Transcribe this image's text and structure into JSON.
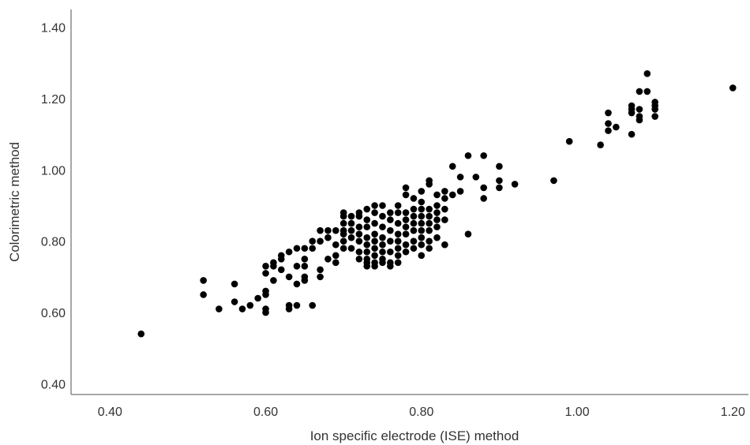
{
  "chart_data": {
    "type": "scatter",
    "title": "",
    "xlabel": "Ion specific electrode (ISE) method",
    "ylabel": "Colorimetric method",
    "xlim": [
      0.35,
      1.22
    ],
    "ylim": [
      0.37,
      1.45
    ],
    "x_ticks": [
      "0.40",
      "0.60",
      "0.80",
      "1.00",
      "1.20"
    ],
    "y_ticks": [
      "0.40",
      "0.60",
      "0.80",
      "1.00",
      "1.20",
      "1.40"
    ],
    "grid": false,
    "legend": "none",
    "point_color": "#000000",
    "points": [
      [
        0.44,
        0.54
      ],
      [
        0.52,
        0.69
      ],
      [
        0.52,
        0.65
      ],
      [
        0.54,
        0.61
      ],
      [
        0.56,
        0.68
      ],
      [
        0.56,
        0.63
      ],
      [
        0.57,
        0.61
      ],
      [
        0.58,
        0.62
      ],
      [
        0.59,
        0.64
      ],
      [
        0.6,
        0.66
      ],
      [
        0.6,
        0.65
      ],
      [
        0.6,
        0.61
      ],
      [
        0.6,
        0.6
      ],
      [
        0.6,
        0.71
      ],
      [
        0.6,
        0.73
      ],
      [
        0.61,
        0.74
      ],
      [
        0.61,
        0.73
      ],
      [
        0.61,
        0.69
      ],
      [
        0.62,
        0.76
      ],
      [
        0.62,
        0.75
      ],
      [
        0.62,
        0.72
      ],
      [
        0.63,
        0.77
      ],
      [
        0.63,
        0.7
      ],
      [
        0.63,
        0.62
      ],
      [
        0.63,
        0.61
      ],
      [
        0.64,
        0.78
      ],
      [
        0.64,
        0.73
      ],
      [
        0.64,
        0.68
      ],
      [
        0.64,
        0.62
      ],
      [
        0.65,
        0.78
      ],
      [
        0.65,
        0.75
      ],
      [
        0.65,
        0.73
      ],
      [
        0.65,
        0.7
      ],
      [
        0.65,
        0.69
      ],
      [
        0.66,
        0.8
      ],
      [
        0.66,
        0.78
      ],
      [
        0.66,
        0.62
      ],
      [
        0.67,
        0.83
      ],
      [
        0.67,
        0.8
      ],
      [
        0.67,
        0.72
      ],
      [
        0.67,
        0.7
      ],
      [
        0.68,
        0.83
      ],
      [
        0.68,
        0.81
      ],
      [
        0.68,
        0.75
      ],
      [
        0.69,
        0.83
      ],
      [
        0.69,
        0.79
      ],
      [
        0.69,
        0.76
      ],
      [
        0.69,
        0.74
      ],
      [
        0.7,
        0.88
      ],
      [
        0.7,
        0.87
      ],
      [
        0.7,
        0.85
      ],
      [
        0.7,
        0.83
      ],
      [
        0.7,
        0.82
      ],
      [
        0.7,
        0.8
      ],
      [
        0.7,
        0.78
      ],
      [
        0.71,
        0.87
      ],
      [
        0.71,
        0.85
      ],
      [
        0.71,
        0.83
      ],
      [
        0.71,
        0.81
      ],
      [
        0.71,
        0.78
      ],
      [
        0.72,
        0.88
      ],
      [
        0.72,
        0.87
      ],
      [
        0.72,
        0.84
      ],
      [
        0.72,
        0.82
      ],
      [
        0.72,
        0.8
      ],
      [
        0.72,
        0.77
      ],
      [
        0.72,
        0.75
      ],
      [
        0.73,
        0.89
      ],
      [
        0.73,
        0.86
      ],
      [
        0.73,
        0.84
      ],
      [
        0.73,
        0.81
      ],
      [
        0.73,
        0.79
      ],
      [
        0.73,
        0.77
      ],
      [
        0.73,
        0.75
      ],
      [
        0.73,
        0.74
      ],
      [
        0.73,
        0.73
      ],
      [
        0.74,
        0.9
      ],
      [
        0.74,
        0.88
      ],
      [
        0.74,
        0.85
      ],
      [
        0.74,
        0.82
      ],
      [
        0.74,
        0.8
      ],
      [
        0.74,
        0.78
      ],
      [
        0.74,
        0.76
      ],
      [
        0.74,
        0.74
      ],
      [
        0.74,
        0.73
      ],
      [
        0.75,
        0.9
      ],
      [
        0.75,
        0.87
      ],
      [
        0.75,
        0.84
      ],
      [
        0.75,
        0.81
      ],
      [
        0.75,
        0.79
      ],
      [
        0.75,
        0.77
      ],
      [
        0.75,
        0.75
      ],
      [
        0.75,
        0.74
      ],
      [
        0.76,
        0.88
      ],
      [
        0.76,
        0.86
      ],
      [
        0.76,
        0.83
      ],
      [
        0.76,
        0.8
      ],
      [
        0.76,
        0.77
      ],
      [
        0.76,
        0.74
      ],
      [
        0.76,
        0.73
      ],
      [
        0.77,
        0.9
      ],
      [
        0.77,
        0.88
      ],
      [
        0.77,
        0.85
      ],
      [
        0.77,
        0.82
      ],
      [
        0.77,
        0.8
      ],
      [
        0.77,
        0.78
      ],
      [
        0.77,
        0.76
      ],
      [
        0.77,
        0.74
      ],
      [
        0.78,
        0.95
      ],
      [
        0.78,
        0.93
      ],
      [
        0.78,
        0.88
      ],
      [
        0.78,
        0.86
      ],
      [
        0.78,
        0.84
      ],
      [
        0.78,
        0.82
      ],
      [
        0.78,
        0.79
      ],
      [
        0.78,
        0.77
      ],
      [
        0.79,
        0.92
      ],
      [
        0.79,
        0.89
      ],
      [
        0.79,
        0.87
      ],
      [
        0.79,
        0.85
      ],
      [
        0.79,
        0.83
      ],
      [
        0.79,
        0.8
      ],
      [
        0.79,
        0.78
      ],
      [
        0.8,
        0.94
      ],
      [
        0.8,
        0.91
      ],
      [
        0.8,
        0.89
      ],
      [
        0.8,
        0.87
      ],
      [
        0.8,
        0.85
      ],
      [
        0.8,
        0.83
      ],
      [
        0.8,
        0.81
      ],
      [
        0.8,
        0.79
      ],
      [
        0.8,
        0.76
      ],
      [
        0.81,
        0.97
      ],
      [
        0.81,
        0.96
      ],
      [
        0.81,
        0.89
      ],
      [
        0.81,
        0.87
      ],
      [
        0.81,
        0.85
      ],
      [
        0.81,
        0.83
      ],
      [
        0.81,
        0.8
      ],
      [
        0.81,
        0.78
      ],
      [
        0.82,
        0.93
      ],
      [
        0.82,
        0.9
      ],
      [
        0.82,
        0.88
      ],
      [
        0.82,
        0.86
      ],
      [
        0.82,
        0.84
      ],
      [
        0.82,
        0.81
      ],
      [
        0.83,
        0.94
      ],
      [
        0.83,
        0.92
      ],
      [
        0.83,
        0.89
      ],
      [
        0.83,
        0.86
      ],
      [
        0.83,
        0.79
      ],
      [
        0.84,
        1.01
      ],
      [
        0.84,
        0.93
      ],
      [
        0.85,
        0.98
      ],
      [
        0.85,
        0.94
      ],
      [
        0.86,
        1.04
      ],
      [
        0.86,
        0.82
      ],
      [
        0.87,
        0.98
      ],
      [
        0.88,
        1.04
      ],
      [
        0.88,
        0.95
      ],
      [
        0.88,
        0.92
      ],
      [
        0.9,
        1.01
      ],
      [
        0.9,
        0.97
      ],
      [
        0.9,
        0.95
      ],
      [
        0.92,
        0.96
      ],
      [
        0.97,
        0.97
      ],
      [
        0.99,
        1.08
      ],
      [
        1.03,
        1.07
      ],
      [
        1.04,
        1.16
      ],
      [
        1.04,
        1.13
      ],
      [
        1.04,
        1.11
      ],
      [
        1.05,
        1.12
      ],
      [
        1.07,
        1.18
      ],
      [
        1.07,
        1.17
      ],
      [
        1.07,
        1.16
      ],
      [
        1.07,
        1.1
      ],
      [
        1.08,
        1.22
      ],
      [
        1.08,
        1.17
      ],
      [
        1.08,
        1.15
      ],
      [
        1.08,
        1.14
      ],
      [
        1.09,
        1.27
      ],
      [
        1.09,
        1.22
      ],
      [
        1.1,
        1.19
      ],
      [
        1.1,
        1.18
      ],
      [
        1.1,
        1.17
      ],
      [
        1.1,
        1.15
      ],
      [
        1.2,
        1.23
      ]
    ]
  }
}
